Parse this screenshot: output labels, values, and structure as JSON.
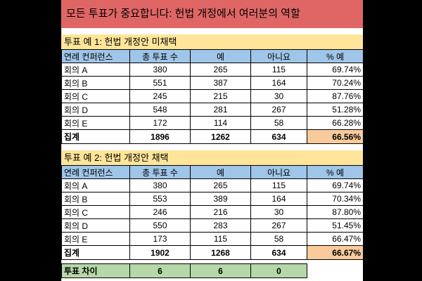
{
  "title": "모든 투표가 중요합니다: 헌법 개정에서 여러분의 역할",
  "headers": [
    "연례 컨퍼런스",
    "총 투표 수",
    "예",
    "아니요",
    "% 예"
  ],
  "example1": {
    "subtitle": "투표 예 1: 헌법 개정안 미채택",
    "rows": [
      [
        "회의 A",
        "380",
        "265",
        "115",
        "69.74%"
      ],
      [
        "회의 B",
        "551",
        "387",
        "164",
        "70.24%"
      ],
      [
        "회의 C",
        "245",
        "215",
        "30",
        "87.76%"
      ],
      [
        "회의 D",
        "548",
        "281",
        "267",
        "51.28%"
      ],
      [
        "회의 E",
        "172",
        "114",
        "58",
        "66.28%"
      ]
    ],
    "total": [
      "집계",
      "1896",
      "1262",
      "634",
      "66.56%"
    ]
  },
  "example2": {
    "subtitle": "투표 예 2: 헌법 개정안 채택",
    "rows": [
      [
        "회의 A",
        "380",
        "265",
        "115",
        "69.74%"
      ],
      [
        "회의 B",
        "553",
        "389",
        "164",
        "70.34%"
      ],
      [
        "회의 C",
        "246",
        "216",
        "30",
        "87.80%"
      ],
      [
        "회의 D",
        "550",
        "283",
        "267",
        "51.45%"
      ],
      [
        "회의 E",
        "173",
        "115",
        "58",
        "66.47%"
      ]
    ],
    "total": [
      "집계",
      "1902",
      "1268",
      "634",
      "66.67%"
    ]
  },
  "difference": [
    "투표 차이",
    "6",
    "6",
    "0"
  ],
  "colors": {
    "title_bg": "#e06666",
    "subtitle_bg": "#ffe599",
    "header_bg": "#9fc5e8",
    "highlight_bg": "#f9cb9c",
    "difference_bg": "#b6d7a8"
  }
}
